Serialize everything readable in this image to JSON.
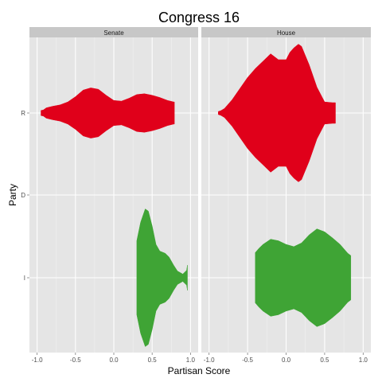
{
  "chart_data": {
    "type": "violin",
    "title": "Congress 16",
    "xlabel": "Partisan Score",
    "ylabel": "Party",
    "xlim": [
      -1.1,
      1.1
    ],
    "x_ticks": [
      -1.0,
      -0.5,
      0.0,
      0.5,
      1.0
    ],
    "x_tick_labels": [
      "-1.0",
      "-0.5",
      "0.0",
      "0.5",
      "1.0"
    ],
    "y_categories": [
      "R",
      "D",
      "I"
    ],
    "grid": true,
    "colors": {
      "R": "#e0001a",
      "I": "#3fa435"
    },
    "facets": [
      {
        "name": "Senate",
        "violins": [
          {
            "party": "R",
            "color": "#e0001a",
            "profile": [
              [
                -0.95,
                0.035
              ],
              [
                -0.92,
                0.04
              ],
              [
                -0.88,
                0.07
              ],
              [
                -0.8,
                0.09
              ],
              [
                -0.7,
                0.11
              ],
              [
                -0.6,
                0.15
              ],
              [
                -0.5,
                0.22
              ],
              [
                -0.4,
                0.31
              ],
              [
                -0.3,
                0.34
              ],
              [
                -0.2,
                0.32
              ],
              [
                -0.1,
                0.24
              ],
              [
                0.0,
                0.17
              ],
              [
                0.1,
                0.16
              ],
              [
                0.2,
                0.2
              ],
              [
                0.3,
                0.25
              ],
              [
                0.4,
                0.26
              ],
              [
                0.5,
                0.24
              ],
              [
                0.6,
                0.21
              ],
              [
                0.7,
                0.17
              ],
              [
                0.78,
                0.15
              ],
              [
                0.79,
                0.15
              ]
            ]
          },
          {
            "party": "I",
            "color": "#3fa435",
            "profile": [
              [
                0.3,
                0.5
              ],
              [
                0.35,
                0.75
              ],
              [
                0.41,
                0.93
              ],
              [
                0.45,
                0.9
              ],
              [
                0.5,
                0.7
              ],
              [
                0.55,
                0.45
              ],
              [
                0.6,
                0.36
              ],
              [
                0.67,
                0.33
              ],
              [
                0.72,
                0.28
              ],
              [
                0.78,
                0.17
              ],
              [
                0.83,
                0.09
              ],
              [
                0.9,
                0.05
              ],
              [
                0.95,
                0.1
              ],
              [
                0.96,
                0.17
              ]
            ]
          }
        ]
      },
      {
        "name": "House",
        "violins": [
          {
            "party": "R",
            "color": "#e0001a",
            "profile": [
              [
                -0.88,
                0.02
              ],
              [
                -0.85,
                0.03
              ],
              [
                -0.8,
                0.06
              ],
              [
                -0.7,
                0.18
              ],
              [
                -0.6,
                0.33
              ],
              [
                -0.5,
                0.48
              ],
              [
                -0.4,
                0.6
              ],
              [
                -0.3,
                0.7
              ],
              [
                -0.2,
                0.8
              ],
              [
                -0.1,
                0.72
              ],
              [
                0.0,
                0.72
              ],
              [
                0.05,
                0.82
              ],
              [
                0.1,
                0.88
              ],
              [
                0.16,
                0.93
              ],
              [
                0.2,
                0.9
              ],
              [
                0.3,
                0.65
              ],
              [
                0.4,
                0.35
              ],
              [
                0.5,
                0.15
              ],
              [
                0.6,
                0.14
              ],
              [
                0.64,
                0.14
              ]
            ]
          },
          {
            "party": "I",
            "color": "#3fa435",
            "profile": [
              [
                -0.4,
                0.34
              ],
              [
                -0.35,
                0.4
              ],
              [
                -0.3,
                0.45
              ],
              [
                -0.2,
                0.52
              ],
              [
                -0.1,
                0.5
              ],
              [
                0.0,
                0.45
              ],
              [
                0.1,
                0.42
              ],
              [
                0.2,
                0.47
              ],
              [
                0.3,
                0.58
              ],
              [
                0.4,
                0.66
              ],
              [
                0.5,
                0.62
              ],
              [
                0.6,
                0.54
              ],
              [
                0.7,
                0.45
              ],
              [
                0.8,
                0.33
              ],
              [
                0.84,
                0.3
              ]
            ]
          }
        ]
      }
    ]
  }
}
